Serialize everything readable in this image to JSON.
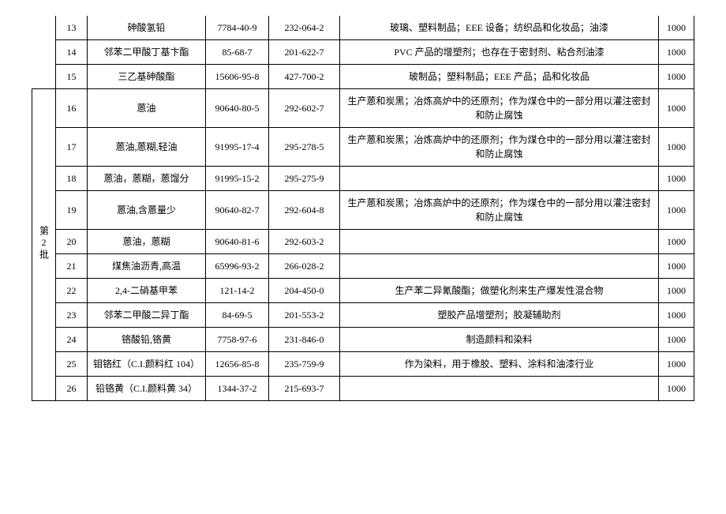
{
  "table": {
    "batch_label": "第2批",
    "rows": [
      {
        "num": "13",
        "name": "砷酸氢铅",
        "cas": "7784-40-9",
        "ec": "232-064-2",
        "use": "玻璃、塑料制品；EEE 设备；纺织品和化妆品；油漆",
        "limit": "1000",
        "batch_empty": true
      },
      {
        "num": "14",
        "name": "邻苯二甲酸丁基卞酯",
        "cas": "85-68-7",
        "ec": "201-622-7",
        "use": "PVC 产品的增塑剂；也存在于密封剂、粘合剂油漆",
        "limit": "1000",
        "batch_empty": true
      },
      {
        "num": "15",
        "name": "三乙基砷酸酯",
        "cas": "15606-95-8",
        "ec": "427-700-2",
        "use": "玻制品；塑料制品；EEE 产品；品和化妆品",
        "limit": "1000",
        "batch_empty": true
      },
      {
        "num": "16",
        "name": "蒽油",
        "cas": "90640-80-5",
        "ec": "292-602-7",
        "use": "生产蒽和炭黑；冶炼高炉中的还原剂；作为煤仓中的一部分用以灌注密封和防止腐蚀",
        "limit": "1000",
        "batch_start": true
      },
      {
        "num": "17",
        "name": "蒽油,蒽糊,轻油",
        "cas": "91995-17-4",
        "ec": "295-278-5",
        "use": "生产蒽和炭黑；冶炼高炉中的还原剂；作为煤仓中的一部分用以灌注密封和防止腐蚀",
        "limit": "1000"
      },
      {
        "num": "18",
        "name": "蒽油，蒽糊，蒽馏分",
        "cas": "91995-15-2",
        "ec": "295-275-9",
        "use": "",
        "limit": "1000"
      },
      {
        "num": "19",
        "name": "蒽油,含蒽量少",
        "cas": "90640-82-7",
        "ec": "292-604-8",
        "use": "生产蒽和炭黑；冶炼高炉中的还原剂；作为煤仓中的一部分用以灌注密封和防止腐蚀",
        "limit": "1000"
      },
      {
        "num": "20",
        "name": "蒽油，蒽糊",
        "cas": "90640-81-6",
        "ec": "292-603-2",
        "use": "",
        "limit": "1000"
      },
      {
        "num": "21",
        "name": "煤焦油沥青,高温",
        "cas": "65996-93-2",
        "ec": "266-028-2",
        "use": "",
        "limit": "1000"
      },
      {
        "num": "22",
        "name": "2,4-二硝基甲苯",
        "cas": "121-14-2",
        "ec": "204-450-0",
        "use": "生产苯二异氰酸酯；做塑化剂来生产爆发性混合物",
        "limit": "1000"
      },
      {
        "num": "23",
        "name": "邻苯二甲酸二异丁酯",
        "cas": "84-69-5",
        "ec": "201-553-2",
        "use": "塑胶产品增塑剂；胶凝辅助剂",
        "limit": "1000"
      },
      {
        "num": "24",
        "name": "铬酸铅,铬黄",
        "cas": "7758-97-6",
        "ec": "231-846-0",
        "use": "制造颜料和染料",
        "limit": "1000"
      },
      {
        "num": "25",
        "name": "钼铬红（C.I.颜料红 104）",
        "cas": "12656-85-8",
        "ec": "235-759-9",
        "use": "作为染料，用于橡胶、塑料、涂料和油漆行业",
        "limit": "1000"
      },
      {
        "num": "26",
        "name": "铅铬黄（C.I.颜料黄 34）",
        "cas": "1344-37-2",
        "ec": "215-693-7",
        "use": "",
        "limit": "1000"
      }
    ]
  }
}
